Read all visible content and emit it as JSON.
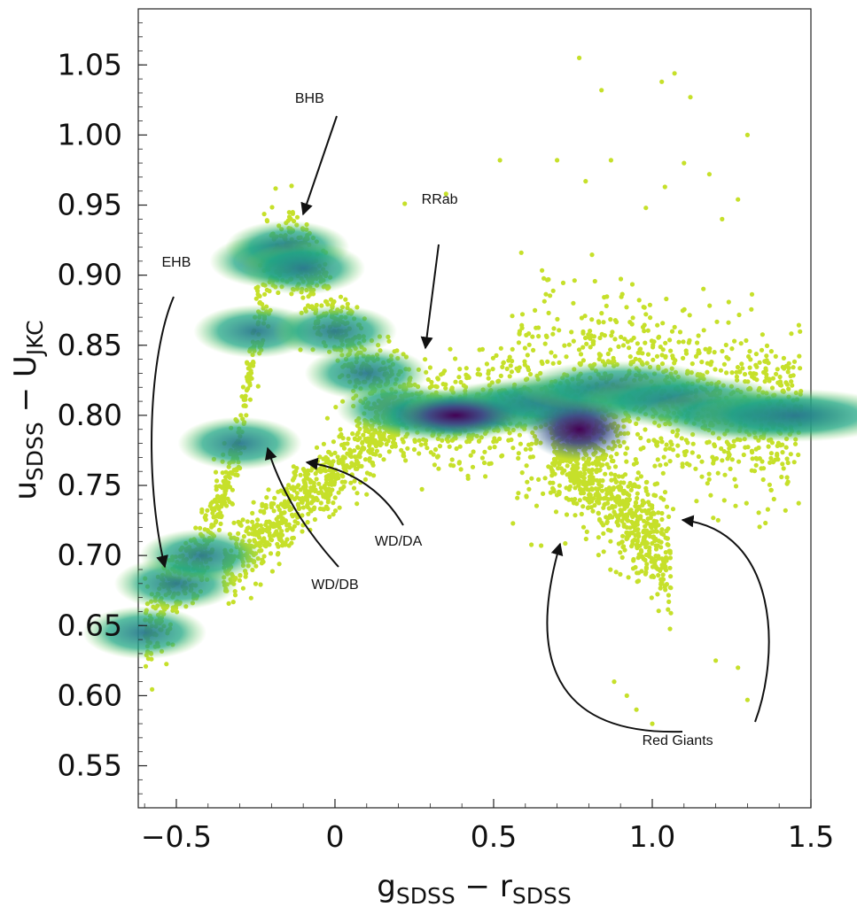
{
  "chart_data": {
    "type": "scatter",
    "title": "",
    "xlabel": {
      "main": "g",
      "sub1": "SDSS",
      "minus": " − ",
      "main2": "r",
      "sub2": "SDSS"
    },
    "ylabel": {
      "main": "u",
      "sub1": "SDSS",
      "minus": " − ",
      "main2": "U",
      "sub2": "JKC"
    },
    "xlim": [
      -0.62,
      1.5
    ],
    "ylim": [
      0.52,
      1.09
    ],
    "xticks": [
      -0.5,
      0,
      0.5,
      1.0,
      1.5
    ],
    "xtick_labels": [
      "−0.5",
      "0",
      "0.5",
      "1.0",
      "1.5"
    ],
    "yticks": [
      0.55,
      0.6,
      0.65,
      0.7,
      0.75,
      0.8,
      0.85,
      0.9,
      0.95,
      1.0,
      1.05
    ],
    "ytick_labels": [
      "0.55",
      "0.60",
      "0.65",
      "0.70",
      "0.75",
      "0.80",
      "0.85",
      "0.90",
      "0.95",
      "1.00",
      "1.05"
    ],
    "colormap": [
      "#dde318",
      "#7ad151",
      "#22a884",
      "#2a788e",
      "#414487",
      "#440154"
    ],
    "point_color": "#c6e02a",
    "density_ridge": [
      {
        "x": -0.6,
        "y": 0.645
      },
      {
        "x": -0.5,
        "y": 0.68
      },
      {
        "x": -0.42,
        "y": 0.7
      },
      {
        "x": -0.3,
        "y": 0.78
      },
      {
        "x": -0.25,
        "y": 0.86
      },
      {
        "x": -0.2,
        "y": 0.91
      },
      {
        "x": -0.15,
        "y": 0.92
      },
      {
        "x": -0.1,
        "y": 0.905
      },
      {
        "x": 0.0,
        "y": 0.86
      },
      {
        "x": 0.1,
        "y": 0.83
      },
      {
        "x": 0.2,
        "y": 0.805
      },
      {
        "x": 0.3,
        "y": 0.8
      },
      {
        "x": 0.4,
        "y": 0.8
      },
      {
        "x": 0.55,
        "y": 0.805
      },
      {
        "x": 0.7,
        "y": 0.81
      },
      {
        "x": 0.9,
        "y": 0.82
      },
      {
        "x": 1.1,
        "y": 0.81
      },
      {
        "x": 1.3,
        "y": 0.8
      },
      {
        "x": 1.45,
        "y": 0.8
      }
    ],
    "outliers": [
      [
        0.77,
        1.055
      ],
      [
        0.84,
        1.032
      ],
      [
        1.03,
        1.038
      ],
      [
        1.07,
        1.044
      ],
      [
        1.12,
        1.027
      ],
      [
        1.3,
        1.0
      ],
      [
        0.52,
        0.982
      ],
      [
        0.7,
        0.982
      ],
      [
        0.87,
        0.982
      ],
      [
        1.18,
        0.972
      ],
      [
        0.35,
        0.958
      ],
      [
        0.22,
        0.951
      ],
      [
        1.27,
        0.954
      ],
      [
        1.04,
        0.963
      ],
      [
        0.98,
        0.948
      ],
      [
        0.79,
        0.967
      ],
      [
        1.1,
        0.98
      ],
      [
        1.22,
        0.94
      ],
      [
        1.27,
        0.62
      ],
      [
        1.3,
        0.597
      ],
      [
        1.2,
        0.625
      ],
      [
        1.0,
        0.58
      ],
      [
        0.95,
        0.59
      ],
      [
        0.92,
        0.6
      ],
      [
        0.88,
        0.61
      ]
    ],
    "annotations": [
      {
        "text": "BHB",
        "label_x": -0.08,
        "label_y": 1.023,
        "arrow_x": -0.11,
        "arrow_y": 0.935
      },
      {
        "text": "RRab",
        "label_x": 0.33,
        "label_y": 0.951,
        "arrow_x": 0.29,
        "arrow_y": 0.845
      },
      {
        "text": "EHB",
        "label_x": -0.5,
        "label_y": 0.906
      },
      {
        "text": "WD/DA",
        "label_x": 0.2,
        "label_y": 0.707
      },
      {
        "text": "WD/DB",
        "label_x": 0.0,
        "label_y": 0.676
      },
      {
        "text": "Red Giants",
        "label_x": 1.08,
        "label_y": 0.565
      }
    ]
  }
}
